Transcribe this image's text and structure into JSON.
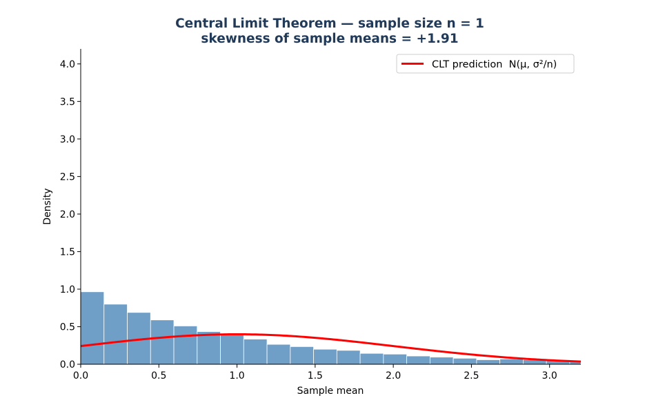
{
  "chart_data": {
    "type": "bar",
    "title_line1": "Central Limit Theorem — sample size n = 1",
    "title_line2": "skewness of sample means = +1.91",
    "xlabel": "Sample mean",
    "ylabel": "Density",
    "xlim": [
      0.0,
      3.2
    ],
    "ylim": [
      0.0,
      4.2
    ],
    "x_ticks": [
      "0.0",
      "0.5",
      "1.0",
      "1.5",
      "2.0",
      "2.5",
      "3.0"
    ],
    "y_ticks": [
      "0.0",
      "0.5",
      "1.0",
      "1.5",
      "2.0",
      "2.5",
      "3.0",
      "3.5",
      "4.0"
    ],
    "bin_width": 0.149,
    "bins": [
      {
        "x0": 0.0,
        "density": 0.965
      },
      {
        "x0": 0.149,
        "density": 0.8
      },
      {
        "x0": 0.298,
        "density": 0.69
      },
      {
        "x0": 0.447,
        "density": 0.59
      },
      {
        "x0": 0.596,
        "density": 0.51
      },
      {
        "x0": 0.745,
        "density": 0.435
      },
      {
        "x0": 0.894,
        "density": 0.39
      },
      {
        "x0": 1.043,
        "density": 0.335
      },
      {
        "x0": 1.192,
        "density": 0.265
      },
      {
        "x0": 1.341,
        "density": 0.235
      },
      {
        "x0": 1.49,
        "density": 0.2
      },
      {
        "x0": 1.639,
        "density": 0.185
      },
      {
        "x0": 1.788,
        "density": 0.145
      },
      {
        "x0": 1.937,
        "density": 0.135
      },
      {
        "x0": 2.086,
        "density": 0.11
      },
      {
        "x0": 2.235,
        "density": 0.095
      },
      {
        "x0": 2.384,
        "density": 0.08
      },
      {
        "x0": 2.533,
        "density": 0.06
      },
      {
        "x0": 2.682,
        "density": 0.07
      },
      {
        "x0": 2.831,
        "density": 0.06
      },
      {
        "x0": 2.98,
        "density": 0.05
      },
      {
        "x0": 3.129,
        "density": 0.035
      }
    ],
    "series": [
      {
        "name": "CLT prediction  N(μ, σ²/n)",
        "type": "line",
        "mu": 1.0,
        "sigma": 1.0
      }
    ],
    "legend_position": "top-right",
    "grid": false,
    "colors": {
      "bar_fill": "#6f9ec7",
      "bar_edge": "#ffffff",
      "curve": "#ff0000",
      "title": "#1f3a5a"
    }
  }
}
